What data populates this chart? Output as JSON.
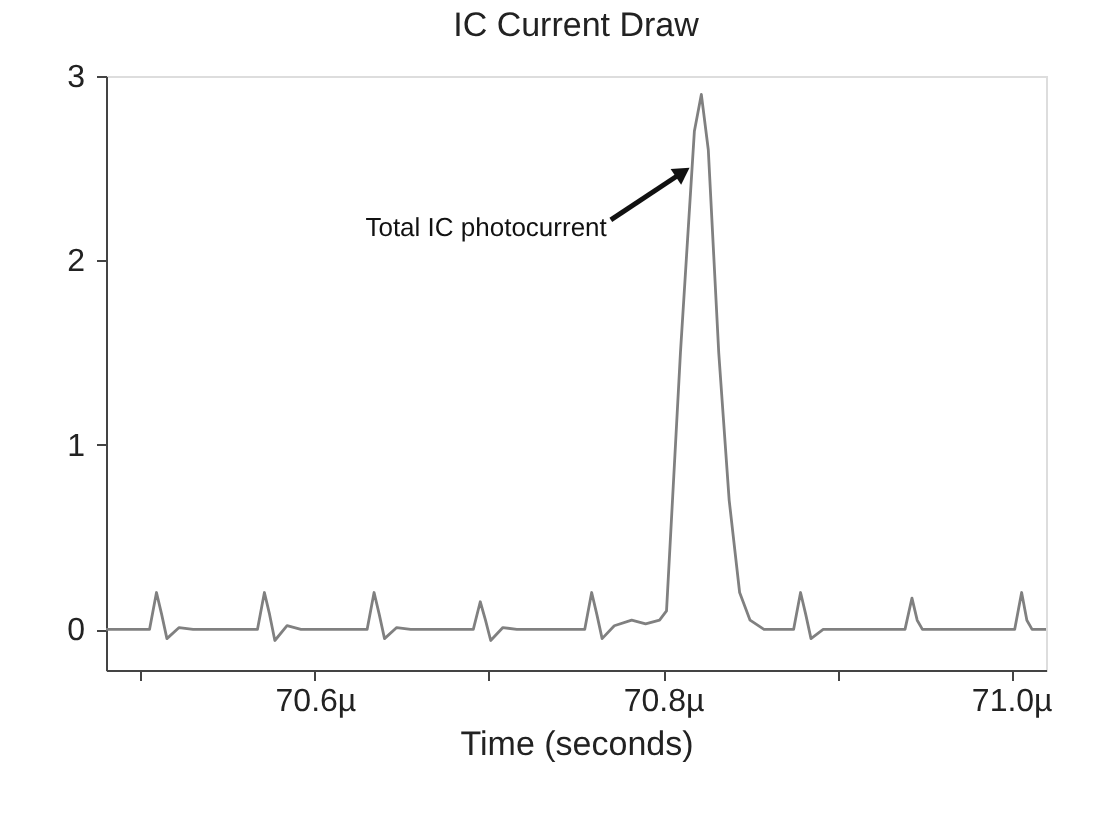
{
  "chart_data": {
    "type": "line",
    "title": "IC Current Draw",
    "xlabel": "Time (seconds)",
    "x": [
      70.48,
      70.505,
      70.509,
      70.512,
      70.515,
      70.522,
      70.53,
      70.567,
      70.571,
      70.574,
      70.577,
      70.584,
      70.592,
      70.63,
      70.634,
      70.637,
      70.64,
      70.647,
      70.655,
      70.691,
      70.695,
      70.698,
      70.701,
      70.708,
      70.716,
      70.755,
      70.759,
      70.762,
      70.765,
      70.772,
      70.782,
      70.79,
      70.798,
      70.802,
      70.81,
      70.818,
      70.822,
      70.826,
      70.832,
      70.838,
      70.844,
      70.85,
      70.858,
      70.875,
      70.879,
      70.882,
      70.885,
      70.892,
      70.939,
      70.943,
      70.946,
      70.949,
      71.002,
      71.006,
      71.009,
      71.012,
      71.02
    ],
    "series": [
      {
        "color": "#808080",
        "values": [
          0,
          0,
          0.2,
          0.08,
          -0.05,
          0.01,
          0,
          0,
          0.2,
          0.08,
          -0.06,
          0.02,
          0,
          0,
          0.2,
          0.08,
          -0.05,
          0.01,
          0,
          0,
          0.15,
          0.05,
          -0.06,
          0.01,
          0,
          0,
          0.2,
          0.08,
          -0.05,
          0.02,
          0.05,
          0.03,
          0.05,
          0.1,
          1.5,
          2.7,
          2.9,
          2.6,
          1.5,
          0.7,
          0.2,
          0.05,
          0,
          0,
          0.2,
          0.08,
          -0.05,
          0,
          0,
          0.17,
          0.05,
          0,
          0,
          0.2,
          0.05,
          0,
          0
        ]
      }
    ],
    "xlim": [
      70.48,
      71.02
    ],
    "xticks": [
      {
        "value": 70.5,
        "label": null
      },
      {
        "value": 70.6,
        "label": "70.6µ"
      },
      {
        "value": 70.7,
        "label": null
      },
      {
        "value": 70.8,
        "label": "70.8µ"
      },
      {
        "value": 70.9,
        "label": null
      },
      {
        "value": 71.0,
        "label": "71.0µ"
      }
    ],
    "ylim": [
      -0.22,
      3
    ],
    "yticks": [
      0,
      1,
      2,
      3
    ],
    "annotations": [
      {
        "text": "Total IC photocurrent",
        "x": 70.81,
        "y": 2.47
      }
    ],
    "grid": false,
    "marker": "none",
    "line_style": "solid"
  }
}
